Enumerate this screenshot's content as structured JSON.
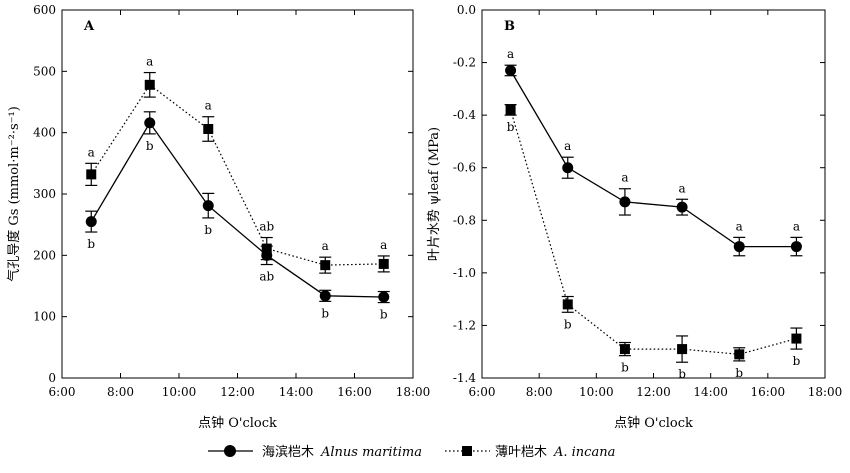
{
  "chart_data": [
    {
      "type": "line",
      "panel_label": "A",
      "xlabel": "点钟 O'clock",
      "ylabel": "气孔导度 Gs (mmol·m⁻²·s⁻¹)",
      "x_ticks": [
        "6:00",
        "8:00",
        "10:00",
        "12:00",
        "14:00",
        "16:00",
        "18:00"
      ],
      "y_ticks": [
        "0",
        "100",
        "200",
        "300",
        "400",
        "500",
        "600"
      ],
      "xlim": [
        6,
        18
      ],
      "ylim": [
        0,
        600
      ],
      "x": [
        7,
        9,
        11,
        13,
        15,
        17
      ],
      "series": [
        {
          "name": "海滨桤木 Alnus maritima",
          "marker": "circle",
          "line": "solid",
          "values": [
            255,
            416,
            281,
            200,
            134,
            132
          ],
          "errors": [
            17,
            18,
            20,
            15,
            9,
            9
          ],
          "labels": [
            "b",
            "b",
            "b",
            "ab",
            "b",
            "b"
          ]
        },
        {
          "name": "薄叶桤木 A. incana",
          "marker": "square",
          "line": "dotted",
          "values": [
            332,
            478,
            406,
            211,
            184,
            186
          ],
          "errors": [
            18,
            20,
            20,
            18,
            13,
            13
          ],
          "labels": [
            "a",
            "a",
            "a",
            "ab",
            "a",
            "a"
          ]
        }
      ]
    },
    {
      "type": "line",
      "panel_label": "B",
      "xlabel": "点钟 O'clock",
      "ylabel": "叶片水势 ψleaf (MPa)",
      "x_ticks": [
        "6:00",
        "8:00",
        "10:00",
        "12:00",
        "14:00",
        "16:00",
        "18:00"
      ],
      "y_ticks": [
        "0.0",
        "-0.2",
        "-0.4",
        "-0.6",
        "-0.8",
        "-1.0",
        "-1.2",
        "-1.4"
      ],
      "xlim": [
        6,
        18
      ],
      "ylim": [
        -1.4,
        0
      ],
      "x": [
        7,
        9,
        11,
        13,
        15,
        17
      ],
      "series": [
        {
          "name": "海滨桤木 Alnus maritima",
          "marker": "circle",
          "line": "solid",
          "values": [
            -0.23,
            -0.6,
            -0.73,
            -0.75,
            -0.9,
            -0.9
          ],
          "errors": [
            0.02,
            0.04,
            0.05,
            0.03,
            0.035,
            0.035
          ],
          "labels": [
            "a",
            "a",
            "a",
            "a",
            "a",
            "a"
          ]
        },
        {
          "name": "薄叶桤木 A. incana",
          "marker": "square",
          "line": "dotted",
          "values": [
            -0.38,
            -1.12,
            -1.29,
            -1.29,
            -1.31,
            -1.25
          ],
          "errors": [
            0.02,
            0.03,
            0.025,
            0.05,
            0.025,
            0.04
          ],
          "labels": [
            "b",
            "b",
            "b",
            "b",
            "b",
            "b"
          ]
        }
      ]
    }
  ],
  "legend": {
    "items": [
      {
        "zh": "海滨桤木",
        "latin": "Alnus maritima"
      },
      {
        "zh": "薄叶桤木",
        "latin": "A. incana"
      }
    ]
  }
}
